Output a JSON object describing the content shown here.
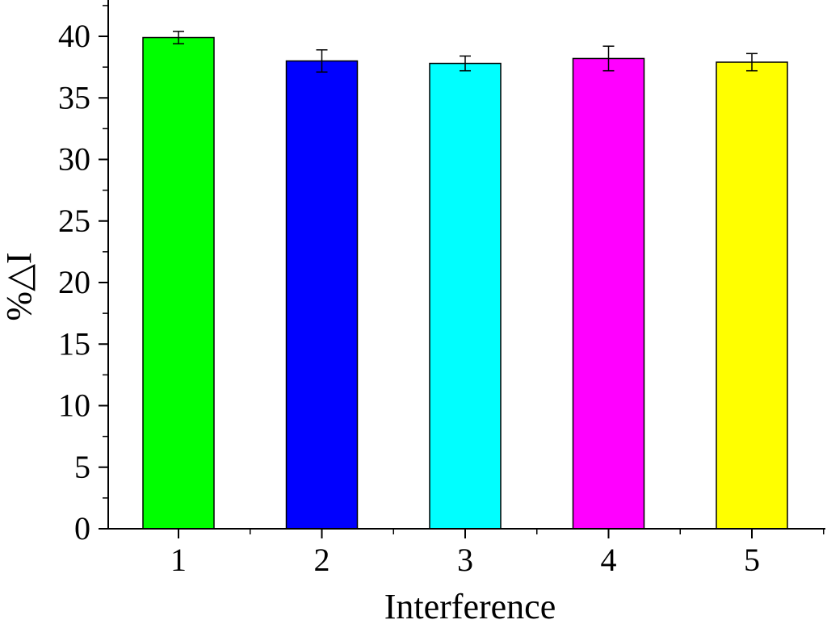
{
  "chart_data": {
    "type": "bar",
    "xlabel": "Interference",
    "ylabel": "%△I",
    "categories": [
      "1",
      "2",
      "3",
      "4",
      "5"
    ],
    "values": [
      39.9,
      38.0,
      37.8,
      38.2,
      37.9
    ],
    "errors": [
      0.5,
      0.9,
      0.6,
      1.0,
      0.7
    ],
    "colors": [
      "#00ff00",
      "#0000ff",
      "#00ffff",
      "#ff00ff",
      "#ffff00"
    ],
    "ylim": [
      0,
      43
    ],
    "yticks": [
      "0",
      "5",
      "10",
      "15",
      "20",
      "25",
      "30",
      "35",
      "40"
    ],
    "grid": false,
    "legend": "none"
  }
}
